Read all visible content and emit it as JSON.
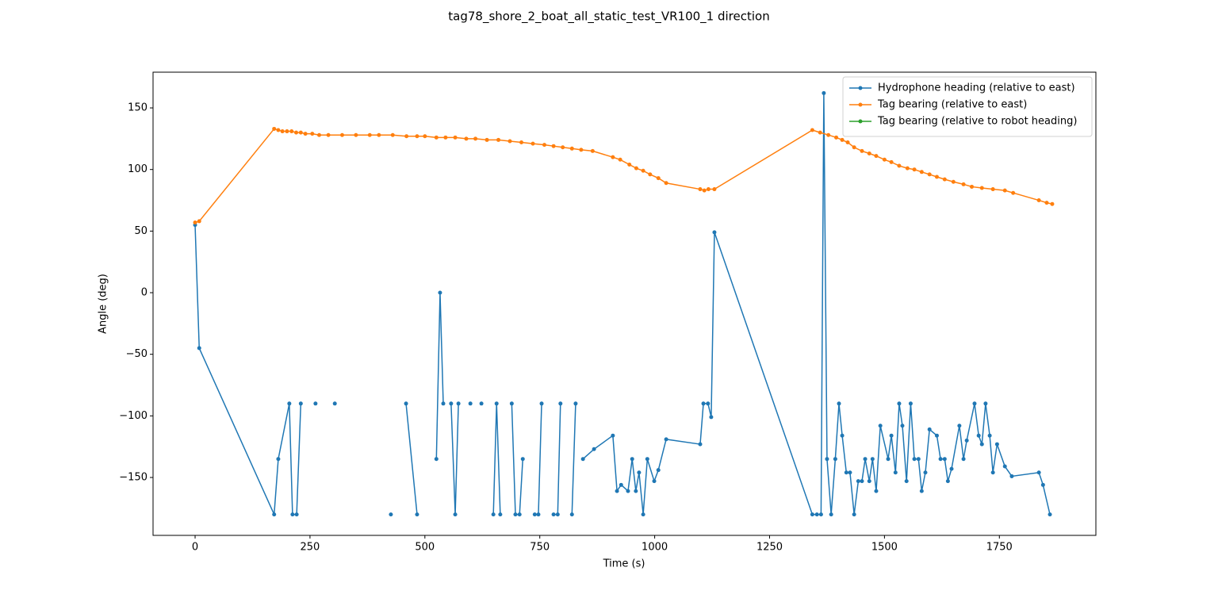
{
  "chart_data": {
    "type": "line",
    "title": "tag78_shore_2_boat_all_static_test_VR100_1 direction",
    "x_label": "Time (s)",
    "y_label": "Angle (deg)",
    "xlim": [
      -91.5,
      1960
    ],
    "ylim": [
      -197,
      179
    ],
    "xticks": [
      0,
      250,
      500,
      750,
      1000,
      1250,
      1500,
      1750
    ],
    "yticks": [
      {
        "value": -150,
        "label": "−150"
      },
      {
        "value": -100,
        "label": "−100"
      },
      {
        "value": -50,
        "label": "−50"
      },
      0,
      50,
      100,
      150
    ],
    "legend": "upper right",
    "markers": true,
    "series": [
      {
        "name": "Hydrophone heading (relative to east)",
        "color": "#1f77b4",
        "x": [
          0,
          9,
          172,
          181,
          205,
          212,
          221,
          230,
          246,
          262,
          283,
          304,
          365,
          426,
          442,
          459,
          483,
          504,
          525,
          533,
          540,
          548,
          557,
          566,
          573,
          586,
          599,
          611,
          623,
          636,
          649,
          656,
          664,
          676,
          689,
          697,
          706,
          713,
          726,
          739,
          747,
          754,
          767,
          780,
          789,
          795,
          808,
          820,
          828,
          836,
          844,
          868,
          909,
          918,
          927,
          942,
          951,
          959,
          966,
          975,
          984,
          999,
          1008,
          1025,
          1099,
          1106,
          1116,
          1123,
          1130,
          1343,
          1353,
          1362,
          1368,
          1375,
          1384,
          1393,
          1401,
          1408,
          1417,
          1425,
          1434,
          1443,
          1451,
          1458,
          1467,
          1474,
          1482,
          1491,
          1508,
          1515,
          1524,
          1532,
          1539,
          1548,
          1557,
          1565,
          1574,
          1581,
          1589,
          1598,
          1614,
          1622,
          1631,
          1638,
          1646,
          1663,
          1672,
          1679,
          1696,
          1705,
          1712,
          1720,
          1729,
          1736,
          1745,
          1762,
          1777,
          1836,
          1845,
          1860
        ],
        "values": [
          55,
          -45,
          -180,
          -135,
          -90,
          -180,
          -180,
          -90,
          null,
          -90,
          null,
          -90,
          null,
          -180,
          null,
          -90,
          -180,
          null,
          -135,
          0,
          -90,
          null,
          -90,
          -180,
          -90,
          null,
          -90,
          null,
          -90,
          null,
          -180,
          -90,
          -180,
          null,
          -90,
          -180,
          -180,
          -135,
          null,
          -180,
          -180,
          -90,
          null,
          -180,
          -180,
          -90,
          null,
          -180,
          -90,
          null,
          -135,
          -127,
          -116,
          -161,
          -156,
          -161,
          -135,
          -161,
          -146,
          -180,
          -135,
          -153,
          -144,
          -119,
          -123,
          -90,
          -90,
          -101,
          49,
          -180,
          -180,
          -180,
          162,
          -135,
          -180,
          -135,
          -90,
          -116,
          -146,
          -146,
          -180,
          -153,
          -153,
          -135,
          -153,
          -135,
          -161,
          -108,
          -135,
          -116,
          -146,
          -90,
          -108,
          -153,
          -90,
          -135,
          -135,
          -161,
          -146,
          -111,
          -116,
          -135,
          -135,
          -153,
          -143,
          -108,
          -135,
          -120,
          -90,
          -116,
          -123,
          -90,
          -116,
          -146,
          -123,
          -141,
          -149,
          -146,
          -156,
          -180
        ]
      },
      {
        "name": "Tag bearing (relative to east)",
        "color": "#ff7f0e",
        "x": [
          0,
          9,
          172,
          181,
          190,
          200,
          210,
          220,
          230,
          240,
          255,
          270,
          290,
          320,
          350,
          380,
          400,
          430,
          460,
          483,
          500,
          525,
          545,
          566,
          590,
          610,
          635,
          660,
          685,
          710,
          735,
          760,
          780,
          800,
          820,
          840,
          865,
          909,
          925,
          945,
          960,
          975,
          990,
          1008,
          1025,
          1099,
          1108,
          1117,
          1130,
          1343,
          1360,
          1378,
          1395,
          1408,
          1420,
          1434,
          1451,
          1467,
          1482,
          1500,
          1515,
          1532,
          1550,
          1565,
          1581,
          1598,
          1614,
          1631,
          1650,
          1672,
          1690,
          1712,
          1736,
          1762,
          1780,
          1836,
          1853,
          1865
        ],
        "values": [
          57,
          58,
          133,
          132,
          131,
          131,
          131,
          130,
          130,
          129,
          129,
          128,
          128,
          128,
          128,
          128,
          128,
          128,
          127,
          127,
          127,
          126,
          126,
          126,
          125,
          125,
          124,
          124,
          123,
          122,
          121,
          120,
          119,
          118,
          117,
          116,
          115,
          110,
          108,
          104,
          101,
          99,
          96,
          93,
          89,
          84,
          83,
          84,
          84,
          132,
          130,
          128,
          126,
          124,
          122,
          118,
          115,
          113,
          111,
          108,
          106,
          103,
          101,
          100,
          98,
          96,
          94,
          92,
          90,
          88,
          86,
          85,
          84,
          83,
          81,
          75,
          73,
          72
        ]
      },
      {
        "name": "Tag bearing (relative to robot heading)",
        "color": "#2ca02c",
        "x": [],
        "values": []
      }
    ]
  }
}
